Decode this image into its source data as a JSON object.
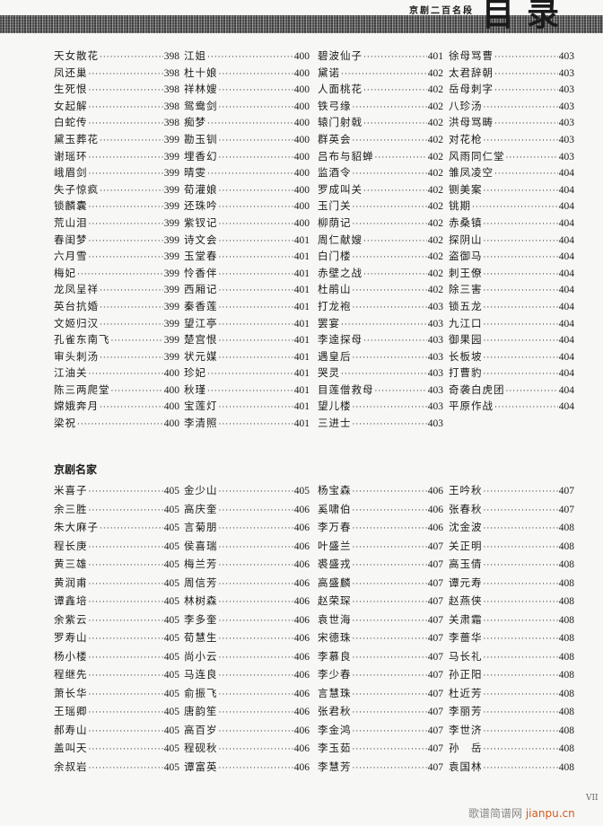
{
  "header": {
    "book_title": "京剧二百名段",
    "heading": "目录"
  },
  "arias": {
    "columns": [
      [
        [
          "天女散花",
          "398"
        ],
        [
          "凤还巢",
          "398"
        ],
        [
          "生死恨",
          "398"
        ],
        [
          "女起解",
          "398"
        ],
        [
          "白蛇传",
          "398"
        ],
        [
          "黛玉葬花",
          "399"
        ],
        [
          "谢瑶环",
          "399"
        ],
        [
          "峨眉剑",
          "399"
        ],
        [
          "失子惊疯",
          "399"
        ],
        [
          "锁麟囊",
          "399"
        ],
        [
          "荒山泪",
          "399"
        ],
        [
          "春闺梦",
          "399"
        ],
        [
          "六月雪",
          "399"
        ],
        [
          "梅妃",
          "399"
        ],
        [
          "龙凤呈祥",
          "399"
        ],
        [
          "英台抗婚",
          "399"
        ],
        [
          "文姬归汉",
          "399"
        ],
        [
          "孔雀东南飞",
          "399"
        ],
        [
          "审头刺汤",
          "399"
        ],
        [
          "江油关",
          "400"
        ],
        [
          "陈三两爬堂",
          "400"
        ],
        [
          "嫦娥奔月",
          "400"
        ],
        [
          "梁祝",
          "400"
        ]
      ],
      [
        [
          "江姐",
          "400"
        ],
        [
          "杜十娘",
          "400"
        ],
        [
          "祥林嫂",
          "400"
        ],
        [
          "鸳鸯剑",
          "400"
        ],
        [
          "痴梦",
          "400"
        ],
        [
          "勘玉钏",
          "400"
        ],
        [
          "埋香幻",
          "400"
        ],
        [
          "晴雯",
          "400"
        ],
        [
          "荀灌娘",
          "400"
        ],
        [
          "还珠吟",
          "400"
        ],
        [
          "紫钗记",
          "400"
        ],
        [
          "诗文会",
          "401"
        ],
        [
          "玉堂春",
          "401"
        ],
        [
          "怜香伴",
          "401"
        ],
        [
          "西厢记",
          "401"
        ],
        [
          "秦香莲",
          "401"
        ],
        [
          "望江亭",
          "401"
        ],
        [
          "楚宫恨",
          "401"
        ],
        [
          "状元媒",
          "401"
        ],
        [
          "珍妃",
          "401"
        ],
        [
          "秋瑾",
          "401"
        ],
        [
          "宝莲灯",
          "401"
        ],
        [
          "李清照",
          "401"
        ]
      ],
      [
        [
          "碧波仙子",
          "401"
        ],
        [
          "黛诺",
          "402"
        ],
        [
          "人面桃花",
          "402"
        ],
        [
          "铁弓缘",
          "402"
        ],
        [
          "辕门射戟",
          "402"
        ],
        [
          "群英会",
          "402"
        ],
        [
          "吕布与貂蝉",
          "402"
        ],
        [
          "监酒令",
          "402"
        ],
        [
          "罗成叫关",
          "402"
        ],
        [
          "玉门关",
          "402"
        ],
        [
          "柳荫记",
          "402"
        ],
        [
          "周仁献嫂",
          "402"
        ],
        [
          "白门楼",
          "402"
        ],
        [
          "赤壁之战",
          "402"
        ],
        [
          "杜鹃山",
          "402"
        ],
        [
          "打龙袍",
          "403"
        ],
        [
          "罢宴",
          "403"
        ],
        [
          "李逵探母",
          "403"
        ],
        [
          "遇皇后",
          "403"
        ],
        [
          "哭灵",
          "403"
        ],
        [
          "目莲僧救母",
          "403"
        ],
        [
          "望儿楼",
          "403"
        ],
        [
          "三进士",
          "403"
        ]
      ],
      [
        [
          "徐母骂曹",
          "403"
        ],
        [
          "太君辞朝",
          "403"
        ],
        [
          "岳母刺字",
          "403"
        ],
        [
          "八珍汤",
          "403"
        ],
        [
          "洪母骂畴",
          "403"
        ],
        [
          "对花枪",
          "403"
        ],
        [
          "风雨同仁堂",
          "403"
        ],
        [
          "雏凤凌空",
          "404"
        ],
        [
          "铡美案",
          "404"
        ],
        [
          "铫期",
          "404"
        ],
        [
          "赤桑镇",
          "404"
        ],
        [
          "探阴山",
          "404"
        ],
        [
          "盗御马",
          "404"
        ],
        [
          "刺王僚",
          "404"
        ],
        [
          "除三害",
          "404"
        ],
        [
          "锁五龙",
          "404"
        ],
        [
          "九江口",
          "404"
        ],
        [
          "御果园",
          "404"
        ],
        [
          "长板坡",
          "404"
        ],
        [
          "打曹豹",
          "404"
        ],
        [
          "奇袭白虎团",
          "404"
        ],
        [
          "平原作战",
          "404"
        ]
      ]
    ]
  },
  "masters": {
    "title": "京剧名家",
    "columns": [
      [
        [
          "米喜子",
          "405"
        ],
        [
          "余三胜",
          "405"
        ],
        [
          "朱大麻子",
          "405"
        ],
        [
          "程长庚",
          "405"
        ],
        [
          "黄三雄",
          "405"
        ],
        [
          "黄润甫",
          "405"
        ],
        [
          "谭鑫培",
          "405"
        ],
        [
          "余紫云",
          "405"
        ],
        [
          "罗寿山",
          "405"
        ],
        [
          "杨小楼",
          "405"
        ],
        [
          "程继先",
          "405"
        ],
        [
          "萧长华",
          "405"
        ],
        [
          "王瑶卿",
          "405"
        ],
        [
          "郝寿山",
          "405"
        ],
        [
          "盖叫天",
          "405"
        ],
        [
          "余叔岩",
          "405"
        ]
      ],
      [
        [
          "金少山",
          "405"
        ],
        [
          "高庆奎",
          "406"
        ],
        [
          "言菊朋",
          "406"
        ],
        [
          "侯喜瑞",
          "406"
        ],
        [
          "梅兰芳",
          "406"
        ],
        [
          "周信芳",
          "406"
        ],
        [
          "林树森",
          "406"
        ],
        [
          "李多奎",
          "406"
        ],
        [
          "荀慧生",
          "406"
        ],
        [
          "尚小云",
          "406"
        ],
        [
          "马连良",
          "406"
        ],
        [
          "俞振飞",
          "406"
        ],
        [
          "唐韵笙",
          "406"
        ],
        [
          "高百岁",
          "406"
        ],
        [
          "程砚秋",
          "406"
        ],
        [
          "谭富英",
          "406"
        ]
      ],
      [
        [
          "杨宝森",
          "406"
        ],
        [
          "奚啸伯",
          "406"
        ],
        [
          "李万春",
          "406"
        ],
        [
          "叶盛兰",
          "407"
        ],
        [
          "裘盛戎",
          "407"
        ],
        [
          "高盛麟",
          "407"
        ],
        [
          "赵荣琛",
          "407"
        ],
        [
          "袁世海",
          "407"
        ],
        [
          "宋德珠",
          "407"
        ],
        [
          "李慕良",
          "407"
        ],
        [
          "李少春",
          "407"
        ],
        [
          "言慧珠",
          "407"
        ],
        [
          "张君秋",
          "407"
        ],
        [
          "李金鸿",
          "407"
        ],
        [
          "李玉茹",
          "407"
        ],
        [
          "李慧芳",
          "407"
        ]
      ],
      [
        [
          "王吟秋",
          "407"
        ],
        [
          "张春秋",
          "407"
        ],
        [
          "沈金波",
          "408"
        ],
        [
          "关正明",
          "408"
        ],
        [
          "高玉倩",
          "408"
        ],
        [
          "谭元寿",
          "408"
        ],
        [
          "赵燕侠",
          "408"
        ],
        [
          "关肃霜",
          "408"
        ],
        [
          "李蔷华",
          "408"
        ],
        [
          "马长礼",
          "408"
        ],
        [
          "孙正阳",
          "408"
        ],
        [
          "杜近芳",
          "408"
        ],
        [
          "李丽芳",
          "408"
        ],
        [
          "李世济",
          "408"
        ],
        [
          "孙　岳",
          "408"
        ],
        [
          "袁国林",
          "408"
        ]
      ]
    ]
  },
  "footer": {
    "folio": "VII",
    "watermark_cn": "歌谱简谱网",
    "watermark_en": "jianpu.cn"
  }
}
